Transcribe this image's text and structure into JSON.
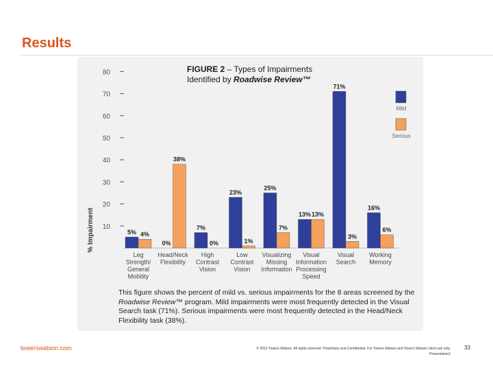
{
  "slide": {
    "title": "Results",
    "footer_brand": "towerswatson.com",
    "footer_legal_1": "© 2010 Towers Watson. All rights reserved. Proprietary and Confidential. For Towers Watson and Towers Watson client use only.",
    "footer_legal_2": "Presentation2",
    "page_number": "33"
  },
  "figure": {
    "label": "FIGURE 2",
    "title_rest": " – Types of Impairments",
    "subtitle_prefix": "Identified by ",
    "subtitle_brand": "Roadwise Review™",
    "caption_1": "This figure shows the percent of mild vs. serious impairments for the 8 areas screened by the ",
    "caption_brand": "Roadwise Review™",
    "caption_2": " program. Mild impairments were most frequently detected in the Visual Search task (71%). Serious impairments were most frequently detected in the Head/Neck Flexibility task (38%)."
  },
  "colors": {
    "mild": "#2e3f9c",
    "serious": "#f4a15f",
    "accent": "#d9531e"
  },
  "chart_data": {
    "type": "bar",
    "ylabel": "% Impairment",
    "ylim": [
      0,
      80
    ],
    "yticks": [
      10,
      20,
      30,
      40,
      50,
      60,
      70,
      80
    ],
    "categories": [
      [
        "Leg",
        "Strength/",
        "General",
        "Mobility"
      ],
      [
        "Head/Neck",
        "Flexibility"
      ],
      [
        "High",
        "Contrast",
        "Vision"
      ],
      [
        "Low",
        "Contrast",
        "Vision"
      ],
      [
        "Visualizing",
        "Missing",
        "Information"
      ],
      [
        "Visual",
        "Information",
        "Processing",
        "Speed"
      ],
      [
        "Visual",
        "Search"
      ],
      [
        "Working",
        "Memory"
      ]
    ],
    "series": [
      {
        "name": "Mild",
        "values": [
          5,
          0,
          7,
          23,
          25,
          13,
          71,
          16
        ],
        "labels": [
          "5%",
          "0%",
          "7%",
          "23%",
          "25%",
          "13%",
          "71%",
          "16%"
        ]
      },
      {
        "name": "Serious",
        "values": [
          4,
          38,
          0,
          1,
          7,
          13,
          3,
          6
        ],
        "labels": [
          "4%",
          "38%",
          "0%",
          "1%",
          "7%",
          "13%",
          "3%",
          "6%"
        ]
      }
    ],
    "legend": [
      "Mild",
      "Serious"
    ]
  }
}
